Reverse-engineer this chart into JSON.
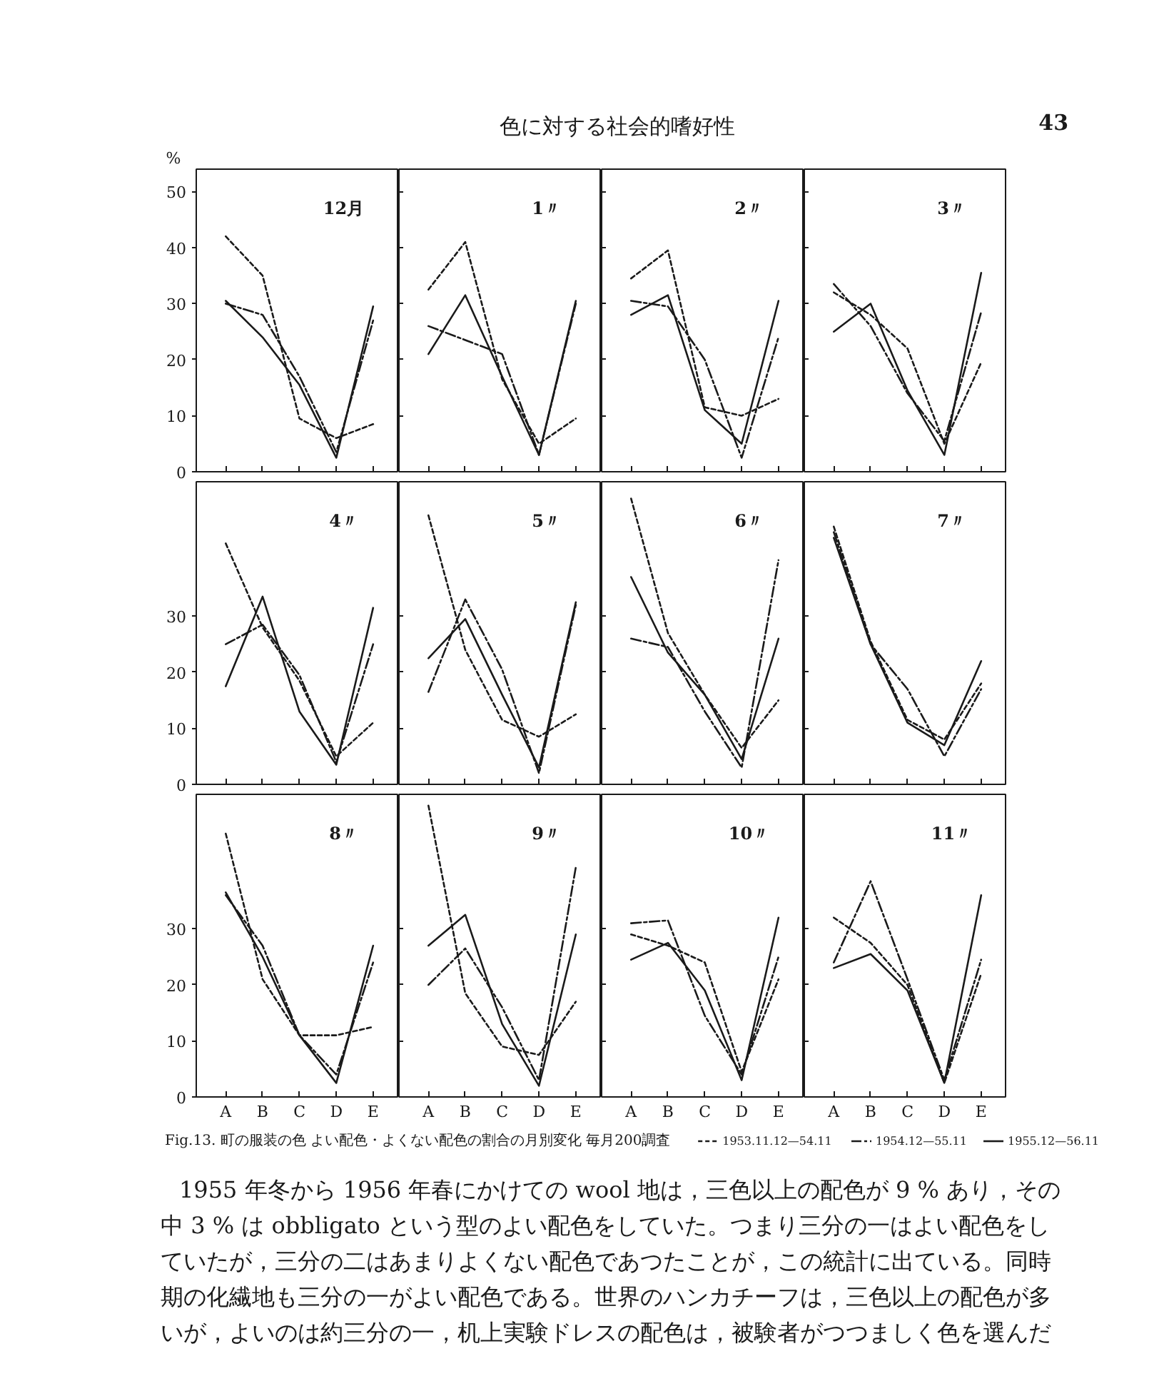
{
  "chart_data": [
    {
      "type": "line",
      "title": "12月",
      "ylabel": "%",
      "annotations": [
        "色に対する社会的嗜好性",
        "43"
      ],
      "categories": [
        "A",
        "B",
        "C",
        "D",
        "E"
      ],
      "ylim": [
        0,
        54
      ],
      "yticks": [
        0,
        10,
        20,
        30,
        40,
        50
      ],
      "tick_labels": "y",
      "series": [
        {
          "color": "#1a1a1a",
          "line_style": "dashed",
          "values": [
            42,
            35,
            9.5,
            6,
            8.5
          ]
        },
        {
          "color": "#1a1a1a",
          "line_style": "dashdot",
          "values": [
            30,
            28,
            17,
            3.5,
            27
          ]
        },
        {
          "color": "#1a1a1a",
          "line_style": "solid",
          "values": [
            30.5,
            24,
            15.5,
            2.5,
            29.5
          ]
        }
      ]
    },
    {
      "type": "line",
      "title": "1〃",
      "categories": [
        "A",
        "B",
        "C",
        "D",
        "E"
      ],
      "ylim": [
        0,
        54
      ],
      "yticks": [
        0,
        10,
        20,
        30,
        40,
        50
      ],
      "tick_labels": false,
      "series": [
        {
          "color": "#1a1a1a",
          "line_style": "dashed",
          "values": [
            32.5,
            41,
            16.5,
            5,
            9.5
          ]
        },
        {
          "color": "#1a1a1a",
          "line_style": "dashdot",
          "values": [
            26,
            23.5,
            21,
            3,
            30
          ]
        },
        {
          "color": "#1a1a1a",
          "line_style": "solid",
          "values": [
            21,
            31.5,
            17,
            3,
            30.5
          ]
        }
      ]
    },
    {
      "type": "line",
      "title": "2〃",
      "categories": [
        "A",
        "B",
        "C",
        "D",
        "E"
      ],
      "ylim": [
        0,
        54
      ],
      "yticks": [
        0,
        10,
        20,
        30,
        40,
        50
      ],
      "tick_labels": false,
      "series": [
        {
          "color": "#1a1a1a",
          "line_style": "dashed",
          "values": [
            34.5,
            39.5,
            11.5,
            10,
            13
          ]
        },
        {
          "color": "#1a1a1a",
          "line_style": "dashdot",
          "values": [
            30.5,
            29.5,
            20,
            2.5,
            24
          ]
        },
        {
          "color": "#1a1a1a",
          "line_style": "solid",
          "values": [
            28,
            31.5,
            11,
            5,
            30.5
          ]
        }
      ]
    },
    {
      "type": "line",
      "title": "3〃",
      "categories": [
        "A",
        "B",
        "C",
        "D",
        "E"
      ],
      "ylim": [
        0,
        54
      ],
      "yticks": [
        0,
        10,
        20,
        30,
        40,
        50
      ],
      "tick_labels": false,
      "series": [
        {
          "color": "#1a1a1a",
          "line_style": "dashed",
          "values": [
            32,
            28,
            22,
            5,
            19.5
          ]
        },
        {
          "color": "#1a1a1a",
          "line_style": "dashdot",
          "values": [
            33.5,
            26,
            14,
            5.5,
            28.5
          ]
        },
        {
          "color": "#1a1a1a",
          "line_style": "solid",
          "values": [
            25,
            30,
            14.5,
            3,
            35.5
          ]
        }
      ]
    },
    {
      "type": "line",
      "title": "4〃",
      "categories": [
        "A",
        "B",
        "C",
        "D",
        "E"
      ],
      "ylim": [
        0,
        54
      ],
      "yticks": [
        0,
        10,
        20,
        30
      ],
      "tick_labels": "y",
      "series": [
        {
          "color": "#1a1a1a",
          "line_style": "dashed",
          "values": [
            43,
            28,
            18.5,
            5,
            11
          ]
        },
        {
          "color": "#1a1a1a",
          "line_style": "dashdot",
          "values": [
            25,
            28.5,
            19.5,
            4,
            25
          ]
        },
        {
          "color": "#1a1a1a",
          "line_style": "solid",
          "values": [
            17.5,
            33.5,
            13,
            3.5,
            31.5
          ]
        }
      ]
    },
    {
      "type": "line",
      "title": "5〃",
      "categories": [
        "A",
        "B",
        "C",
        "D",
        "E"
      ],
      "ylim": [
        0,
        54
      ],
      "yticks": [
        0,
        10,
        20,
        30
      ],
      "tick_labels": false,
      "series": [
        {
          "color": "#1a1a1a",
          "line_style": "dashed",
          "values": [
            48,
            24,
            11.5,
            8.5,
            12.5
          ]
        },
        {
          "color": "#1a1a1a",
          "line_style": "dashdot",
          "values": [
            16.5,
            33,
            20.5,
            2,
            32
          ]
        },
        {
          "color": "#1a1a1a",
          "line_style": "solid",
          "values": [
            22.5,
            29.5,
            16,
            3,
            32.5
          ]
        }
      ]
    },
    {
      "type": "line",
      "title": "6〃",
      "categories": [
        "A",
        "B",
        "C",
        "D",
        "E"
      ],
      "ylim": [
        0,
        54
      ],
      "yticks": [
        0,
        10,
        20,
        30
      ],
      "tick_labels": false,
      "series": [
        {
          "color": "#1a1a1a",
          "line_style": "dashed",
          "values": [
            51,
            27,
            16,
            6.5,
            15
          ]
        },
        {
          "color": "#1a1a1a",
          "line_style": "dashdot",
          "values": [
            26,
            24.5,
            13,
            3,
            40
          ]
        },
        {
          "color": "#1a1a1a",
          "line_style": "solid",
          "values": [
            37,
            23.5,
            16,
            4.5,
            26
          ]
        }
      ]
    },
    {
      "type": "line",
      "title": "7〃",
      "categories": [
        "A",
        "B",
        "C",
        "D",
        "E"
      ],
      "ylim": [
        0,
        54
      ],
      "yticks": [
        0,
        10,
        20,
        30
      ],
      "tick_labels": false,
      "series": [
        {
          "color": "#1a1a1a",
          "line_style": "dashed",
          "values": [
            46,
            25.5,
            11.5,
            8,
            18
          ]
        },
        {
          "color": "#1a1a1a",
          "line_style": "dashdot",
          "values": [
            45,
            25,
            17,
            5,
            17
          ]
        },
        {
          "color": "#1a1a1a",
          "line_style": "solid",
          "values": [
            44,
            25,
            11,
            7,
            22
          ]
        }
      ]
    },
    {
      "type": "line",
      "title": "8〃",
      "categories": [
        "A",
        "B",
        "C",
        "D",
        "E"
      ],
      "ylim": [
        0,
        54
      ],
      "yticks": [
        0,
        10,
        20,
        30
      ],
      "series": [
        {
          "color": "#1a1a1a",
          "line_style": "dashed",
          "values": [
            47,
            21,
            11,
            11,
            12.5
          ]
        },
        {
          "color": "#1a1a1a",
          "line_style": "dashdot",
          "values": [
            36,
            27,
            11,
            4,
            24
          ]
        },
        {
          "color": "#1a1a1a",
          "line_style": "solid",
          "values": [
            36.5,
            25,
            11,
            2.5,
            27
          ]
        }
      ]
    },
    {
      "type": "line",
      "title": "9〃",
      "categories": [
        "A",
        "B",
        "C",
        "D",
        "E"
      ],
      "ylim": [
        0,
        54
      ],
      "yticks": [
        0,
        10,
        20,
        30
      ],
      "tick_labels": "x",
      "series": [
        {
          "color": "#1a1a1a",
          "line_style": "dashed",
          "values": [
            52,
            18.5,
            9,
            7.5,
            17
          ]
        },
        {
          "color": "#1a1a1a",
          "line_style": "dashdot",
          "values": [
            20,
            26.5,
            16,
            3,
            41
          ]
        },
        {
          "color": "#1a1a1a",
          "line_style": "solid",
          "values": [
            27,
            32.5,
            13,
            2,
            29
          ]
        }
      ]
    },
    {
      "type": "line",
      "title": "10〃",
      "categories": [
        "A",
        "B",
        "C",
        "D",
        "E"
      ],
      "ylim": [
        0,
        54
      ],
      "yticks": [
        0,
        10,
        20,
        30
      ],
      "tick_labels": "x",
      "series": [
        {
          "color": "#1a1a1a",
          "line_style": "dashed",
          "values": [
            29,
            27,
            24,
            4.5,
            21
          ]
        },
        {
          "color": "#1a1a1a",
          "line_style": "dashdot",
          "values": [
            31,
            31.5,
            14.5,
            4,
            25
          ]
        },
        {
          "color": "#1a1a1a",
          "line_style": "solid",
          "values": [
            24.5,
            27.5,
            19,
            3,
            32
          ]
        }
      ]
    },
    {
      "type": "line",
      "title": "11〃",
      "categories": [
        "A",
        "B",
        "C",
        "D",
        "E"
      ],
      "ylim": [
        0,
        54
      ],
      "yticks": [
        0,
        10,
        20,
        30
      ],
      "tick_labels": "x",
      "legend": "bottom",
      "annotations": [
        "Fig.13. 町の服装の色 よい配色・よくない配色の割合の月別変化 毎月200調査",
        "1955 年冬から 1956 年春にかけての wool 地は，三色以上の配色が 9 % あり，その",
        "中 3 % は obbligato という型のよい配色をしていた。つまり三分の一はよい配色をし",
        "ていたが，三分の二はあまりよくない配色であつたことが，この統計に出ている。同時",
        "期の化繊地も三分の一がよい配色である。世界のハンカチーフは，三色以上の配色が多",
        "いが，よいのは約三分の一，机上実験ドレスの配色は，被験者がつつましく色を選んだ"
      ],
      "series": [
        {
          "name": "1953.11.12—54.11",
          "color": "#1a1a1a",
          "line_style": "dashed",
          "values": [
            32,
            27.5,
            20,
            2.5,
            22
          ]
        },
        {
          "name": "1954.12—55.11",
          "color": "#1a1a1a",
          "line_style": "dashdot",
          "values": [
            24,
            38.5,
            21,
            3,
            24.5
          ]
        },
        {
          "name": "1955.12—56.11",
          "color": "#1a1a1a",
          "line_style": "solid",
          "values": [
            23,
            25.5,
            19,
            2.5,
            36
          ]
        }
      ]
    }
  ]
}
